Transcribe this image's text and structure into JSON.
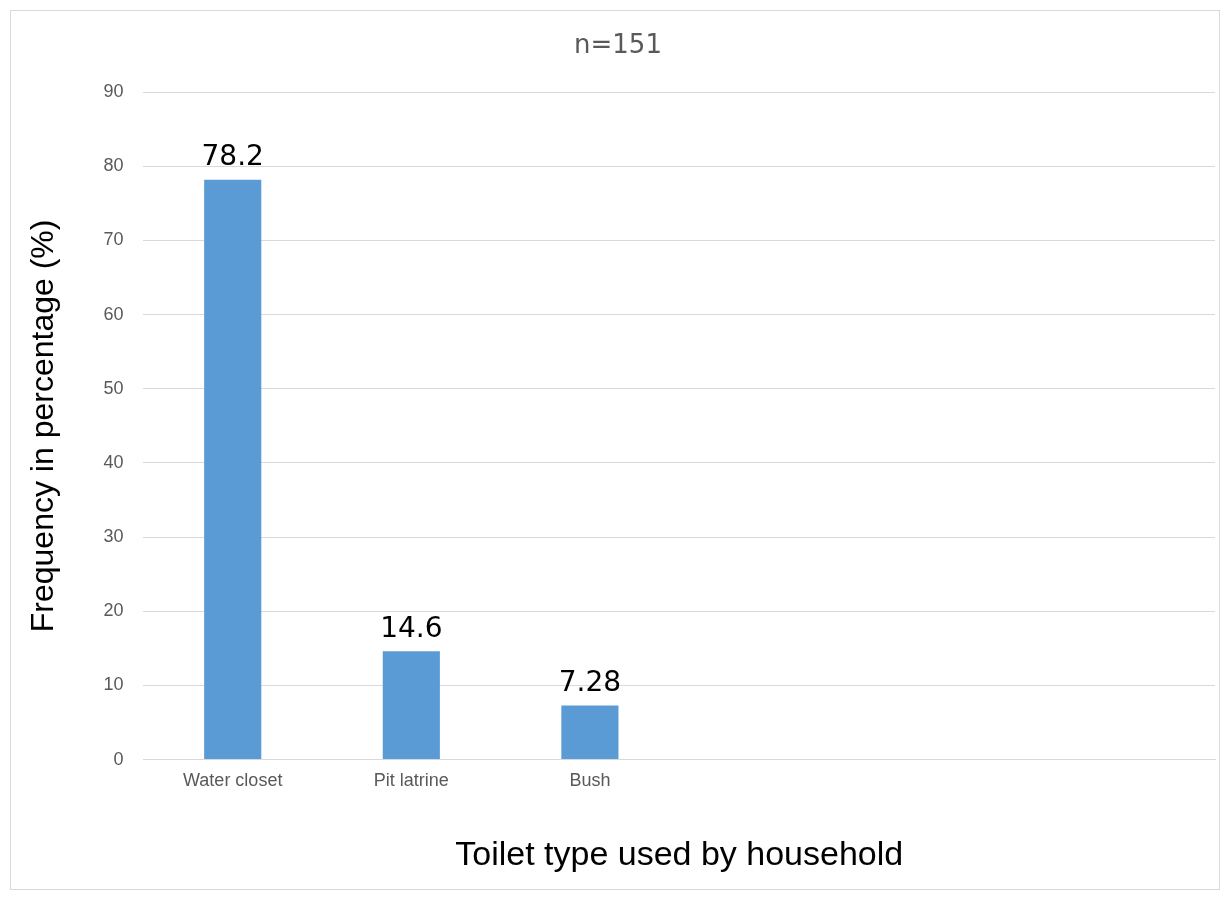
{
  "chart_data": {
    "type": "bar",
    "title": "n=151",
    "xlabel": "Toilet type used by household",
    "ylabel": "Frequency in percentage (%)",
    "categories": [
      "Water closet",
      "Pit latrine",
      "Bush",
      null,
      null,
      null
    ],
    "values": [
      78.2,
      14.6,
      7.28,
      null,
      null,
      null
    ],
    "color": "#5b9bd5",
    "ylim": [
      0,
      90
    ],
    "yticks": [
      0,
      10,
      20,
      30,
      40,
      50,
      60,
      70,
      80,
      90
    ],
    "grid": "y",
    "data_labels": true
  }
}
